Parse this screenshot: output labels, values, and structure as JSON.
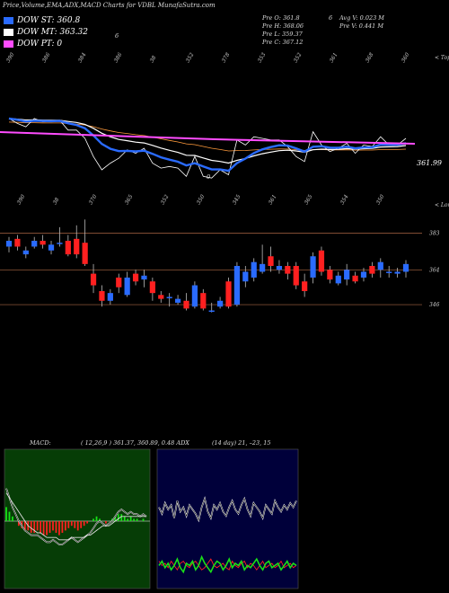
{
  "header": {
    "title": "Price,Volume,EMA,ADX,MACD Charts for VDBL MunafaSutra.com"
  },
  "legend": [
    {
      "label": "DOW ST: 360.8",
      "color": "#2a6bff"
    },
    {
      "label": "DOW MT: 363.32",
      "color": "#ffffff"
    },
    {
      "label": "DOW PT: 0",
      "color": "#ff4cff"
    }
  ],
  "stats": {
    "open": "Pre  O: 361.8",
    "high": "Pre  H: 368.06",
    "low": "Pre  L: 359.37",
    "close": "Pre  C: 367.12",
    "avg_vol": "Avg V: 0.023 M",
    "pre_vol": "Pre  V: 0.441 M",
    "marker": "6"
  },
  "misc_marks": [
    "6",
    "0"
  ],
  "colors": {
    "up": "#2a6bff",
    "down": "#ff2020",
    "st": "#2a6bff",
    "mt": "#ffffff",
    "pt": "#ff4cff",
    "price": "#ffffff",
    "slowema": "#ff9a3c",
    "lines": "#a64"
  },
  "chart_data": [
    {
      "type": "line",
      "title": "Price / EMA",
      "top_labels": [
        "390",
        "386",
        "384",
        "386",
        "38",
        "352",
        "378",
        "353",
        "352",
        "361",
        "368",
        "360"
      ],
      "corner_label": "< Topo",
      "bottom_labels": [
        "390",
        "38",
        "370",
        "365",
        "352",
        "350",
        "345",
        "361",
        "365",
        "354",
        "350"
      ],
      "bottom_corner": "< Lowes",
      "latest_price_label": "361.99",
      "pt_level": 0
    },
    {
      "type": "bar",
      "title": "Candles",
      "level_labels": [
        "383",
        "364",
        "346"
      ],
      "candles": [
        {
          "o": 376,
          "c": 379,
          "h": 381,
          "l": 373
        },
        {
          "o": 380,
          "c": 376,
          "h": 382,
          "l": 374
        },
        {
          "o": 372,
          "c": 374,
          "h": 376,
          "l": 370
        },
        {
          "o": 376,
          "c": 379,
          "h": 381,
          "l": 375
        },
        {
          "o": 379,
          "c": 377,
          "h": 382,
          "l": 375
        },
        {
          "o": 374,
          "c": 377,
          "h": 379,
          "l": 372
        },
        {
          "o": 378,
          "c": 378,
          "h": 386,
          "l": 376
        },
        {
          "o": 379,
          "c": 372,
          "h": 382,
          "l": 371
        },
        {
          "o": 380,
          "c": 372,
          "h": 387,
          "l": 370
        },
        {
          "o": 378,
          "c": 367,
          "h": 390,
          "l": 366
        },
        {
          "o": 362,
          "c": 356,
          "h": 367,
          "l": 352
        },
        {
          "o": 353,
          "c": 348,
          "h": 356,
          "l": 345
        },
        {
          "o": 348,
          "c": 352,
          "h": 354,
          "l": 346
        },
        {
          "o": 360,
          "c": 355,
          "h": 362,
          "l": 352
        },
        {
          "o": 351,
          "c": 360,
          "h": 363,
          "l": 350
        },
        {
          "o": 362,
          "c": 358,
          "h": 364,
          "l": 356
        },
        {
          "o": 359,
          "c": 361,
          "h": 364,
          "l": 355
        },
        {
          "o": 358,
          "c": 352,
          "h": 360,
          "l": 348
        },
        {
          "o": 351,
          "c": 349,
          "h": 353,
          "l": 347
        },
        {
          "o": 350,
          "c": 350,
          "h": 352,
          "l": 345
        },
        {
          "o": 347,
          "c": 349,
          "h": 351,
          "l": 346
        },
        {
          "o": 348,
          "c": 344,
          "h": 352,
          "l": 343
        },
        {
          "o": 345,
          "c": 356,
          "h": 358,
          "l": 344
        },
        {
          "o": 352,
          "c": 344,
          "h": 354,
          "l": 343
        },
        {
          "o": 343,
          "c": 343,
          "h": 347,
          "l": 342
        },
        {
          "o": 345,
          "c": 348,
          "h": 350,
          "l": 344
        },
        {
          "o": 358,
          "c": 345,
          "h": 360,
          "l": 344
        },
        {
          "o": 346,
          "c": 366,
          "h": 368,
          "l": 345
        },
        {
          "o": 358,
          "c": 363,
          "h": 366,
          "l": 355
        },
        {
          "o": 360,
          "c": 368,
          "h": 370,
          "l": 358
        },
        {
          "o": 363,
          "c": 367,
          "h": 377,
          "l": 362
        },
        {
          "o": 371,
          "c": 366,
          "h": 376,
          "l": 363
        },
        {
          "o": 364,
          "c": 366,
          "h": 369,
          "l": 362
        },
        {
          "o": 366,
          "c": 362,
          "h": 368,
          "l": 359
        },
        {
          "o": 366,
          "c": 356,
          "h": 368,
          "l": 354
        },
        {
          "o": 358,
          "c": 353,
          "h": 362,
          "l": 350
        },
        {
          "o": 360,
          "c": 371,
          "h": 373,
          "l": 357
        },
        {
          "o": 374,
          "c": 363,
          "h": 376,
          "l": 361
        },
        {
          "o": 364,
          "c": 359,
          "h": 366,
          "l": 357
        },
        {
          "o": 357,
          "c": 361,
          "h": 363,
          "l": 356
        },
        {
          "o": 359,
          "c": 364,
          "h": 367,
          "l": 356
        },
        {
          "o": 361,
          "c": 358,
          "h": 363,
          "l": 357
        },
        {
          "o": 360,
          "c": 363,
          "h": 365,
          "l": 358
        },
        {
          "o": 366,
          "c": 362,
          "h": 368,
          "l": 360
        },
        {
          "o": 364,
          "c": 368,
          "h": 370,
          "l": 360
        },
        {
          "o": 363,
          "c": 363,
          "h": 366,
          "l": 360
        },
        {
          "o": 362,
          "c": 363,
          "h": 365,
          "l": 360
        },
        {
          "o": 363,
          "c": 367,
          "h": 369,
          "l": 360
        }
      ]
    },
    {
      "type": "line",
      "title": "MACD",
      "label": "MACD:",
      "params": "( 12,26,9 ) 361.37,  360.89,  0.48 ADX",
      "histogram": [
        6,
        4,
        2,
        0,
        -2,
        -3,
        -4,
        -4,
        -5,
        -5,
        -4,
        -5,
        -6,
        -6,
        -5,
        -4,
        -5,
        -6,
        -5,
        -4,
        -3,
        -2,
        -3,
        -4,
        -3,
        -2,
        -1,
        0,
        1,
        2,
        1,
        0,
        -1,
        0,
        1,
        2,
        3,
        3,
        2,
        1,
        2,
        1,
        1,
        0,
        1,
        0
      ],
      "macd_line": [
        14,
        10,
        6,
        3,
        0,
        -2,
        -4,
        -5,
        -6,
        -6,
        -6,
        -7,
        -8,
        -9,
        -9,
        -8,
        -9,
        -10,
        -10,
        -9,
        -8,
        -7,
        -8,
        -9,
        -8,
        -7,
        -6,
        -5,
        -3,
        -1,
        0,
        -1,
        -2,
        -1,
        0,
        2,
        4,
        5,
        4,
        3,
        4,
        3,
        3,
        2,
        3,
        2
      ],
      "signal_line": [
        12,
        10,
        8,
        6,
        4,
        2,
        0,
        -2,
        -3,
        -4,
        -5,
        -5,
        -6,
        -7,
        -7,
        -7,
        -7,
        -8,
        -8,
        -8,
        -8,
        -7,
        -7,
        -7,
        -7,
        -7,
        -6,
        -6,
        -5,
        -4,
        -3,
        -2,
        -2,
        -2,
        -1,
        0,
        1,
        2,
        2,
        2,
        2,
        2,
        2,
        2,
        2,
        2
      ]
    },
    {
      "type": "line",
      "title": "ADX",
      "params": "(14 day) 21, –23,  15",
      "adx": [
        72,
        66,
        76,
        70,
        74,
        62,
        78,
        68,
        72,
        64,
        74,
        70,
        66,
        60,
        72,
        80,
        68,
        62,
        74,
        70,
        76,
        68,
        64,
        72,
        78,
        70,
        66,
        74,
        80,
        70,
        64,
        76,
        72,
        68,
        62,
        74,
        70,
        66,
        78,
        72,
        68,
        74,
        70,
        76,
        72,
        78
      ],
      "plus_di": [
        18,
        22,
        16,
        20,
        14,
        18,
        24,
        16,
        12,
        20,
        18,
        22,
        14,
        18,
        26,
        20,
        16,
        12,
        18,
        22,
        20,
        14,
        18,
        24,
        16,
        20,
        18,
        22,
        14,
        18,
        16,
        20,
        24,
        18,
        14,
        20,
        22,
        16,
        18,
        20,
        14,
        18,
        22,
        16,
        20,
        18
      ],
      "minus_di": [
        22,
        18,
        20,
        16,
        22,
        18,
        14,
        20,
        22,
        18,
        16,
        20,
        22,
        18,
        14,
        16,
        20,
        24,
        18,
        16,
        18,
        20,
        16,
        14,
        22,
        18,
        16,
        20,
        22,
        16,
        20,
        18,
        14,
        18,
        22,
        16,
        18,
        20,
        16,
        18,
        22,
        16,
        18,
        20,
        16,
        18
      ]
    }
  ]
}
